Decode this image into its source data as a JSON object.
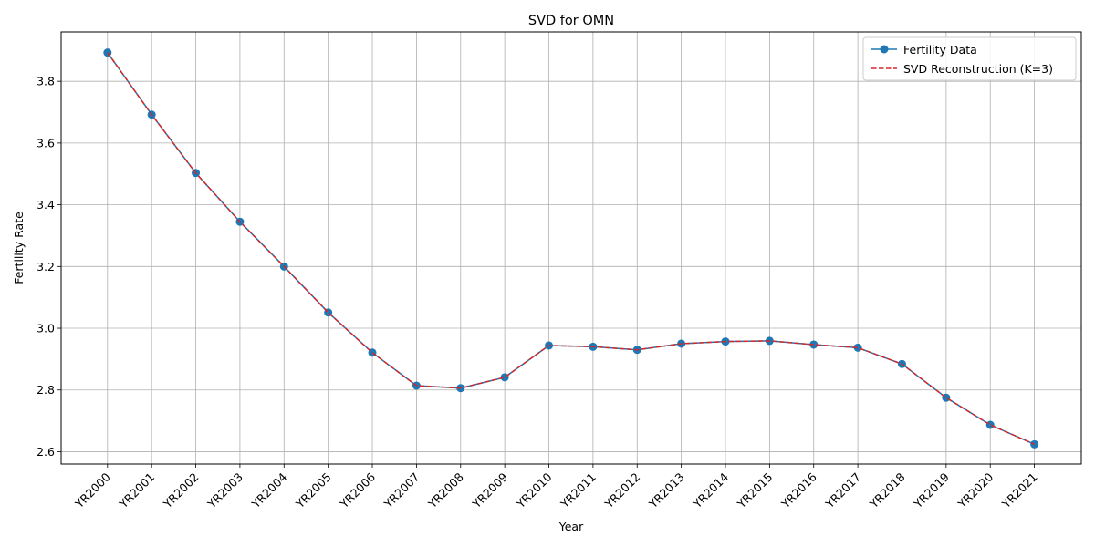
{
  "chart_data": {
    "type": "line",
    "title": "SVD for OMN",
    "xlabel": "Year",
    "ylabel": "Fertility Rate",
    "categories": [
      "YR2000",
      "YR2001",
      "YR2002",
      "YR2003",
      "YR2004",
      "YR2005",
      "YR2006",
      "YR2007",
      "YR2008",
      "YR2009",
      "YR2010",
      "YR2011",
      "YR2012",
      "YR2013",
      "YR2014",
      "YR2015",
      "YR2016",
      "YR2017",
      "YR2018",
      "YR2019",
      "YR2020",
      "YR2021"
    ],
    "ylim": [
      2.56,
      3.96
    ],
    "yticks": [
      "2.6",
      "2.8",
      "3.0",
      "3.2",
      "3.4",
      "3.6",
      "3.8"
    ],
    "grid": true,
    "legend_position": "top-right",
    "series": [
      {
        "name": "Fertility Data",
        "color": "#1f77b4",
        "style": "solid-with-circle-markers",
        "values": [
          3.893,
          3.692,
          3.503,
          3.345,
          3.2,
          3.051,
          2.921,
          2.814,
          2.806,
          2.841,
          2.944,
          2.94,
          2.93,
          2.95,
          2.957,
          2.959,
          2.947,
          2.937,
          2.884,
          2.775,
          2.687,
          2.624
        ]
      },
      {
        "name": "SVD Reconstruction (K=3)",
        "color": "#d62728",
        "style": "dashed",
        "values": [
          3.893,
          3.692,
          3.503,
          3.345,
          3.2,
          3.051,
          2.921,
          2.814,
          2.806,
          2.841,
          2.944,
          2.94,
          2.93,
          2.95,
          2.957,
          2.959,
          2.947,
          2.937,
          2.884,
          2.775,
          2.687,
          2.624
        ]
      }
    ]
  }
}
